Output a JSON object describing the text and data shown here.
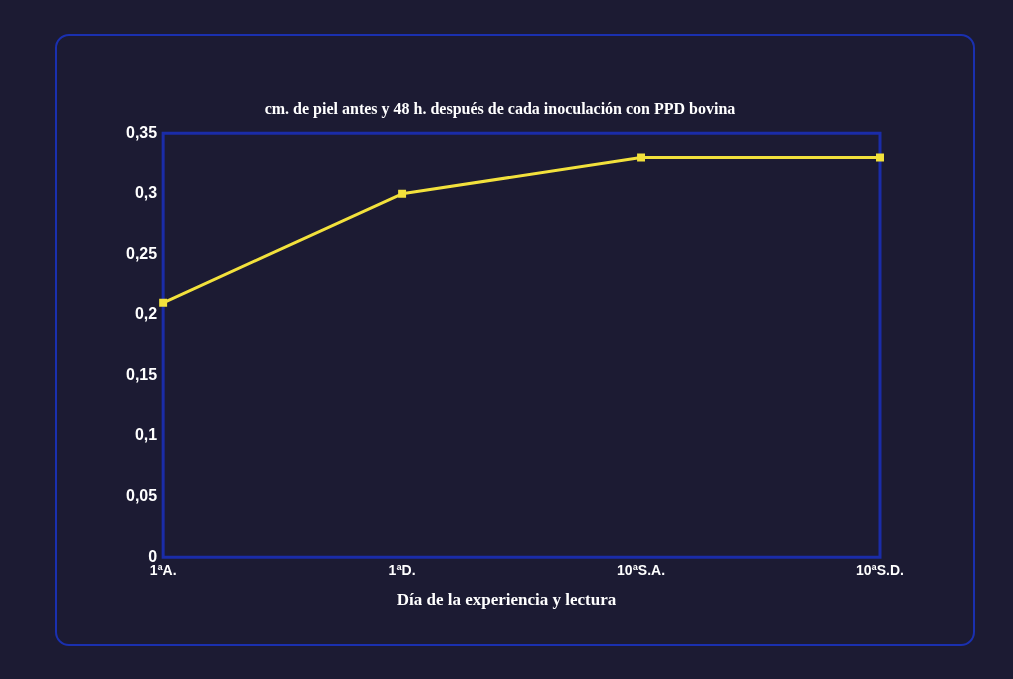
{
  "chart_data": {
    "type": "line",
    "title": "cm. de piel antes y 48 h. después de cada inoculación con PPD bovina",
    "xlabel": "Día de la experiencia y lectura",
    "categories": [
      "1ªA.",
      "1ªD.",
      "10ªS.A.",
      "10ªS.D."
    ],
    "series": [
      {
        "color": "#f2e13c",
        "values": [
          0.21,
          0.3,
          0.33,
          0.33
        ]
      }
    ],
    "ylim": [
      0,
      0.35
    ],
    "yticks": [
      {
        "value": 0,
        "label": "0"
      },
      {
        "value": 0.05,
        "label": "0,05"
      },
      {
        "value": 0.1,
        "label": "0,1"
      },
      {
        "value": 0.15,
        "label": "0,15"
      },
      {
        "value": 0.2,
        "label": "0,2"
      },
      {
        "value": 0.25,
        "label": "0,25"
      },
      {
        "value": 0.3,
        "label": "0,3"
      },
      {
        "value": 0.35,
        "label": "0,35"
      }
    ],
    "grid": false,
    "legend": false,
    "marker": "square",
    "line_style": "solid"
  }
}
